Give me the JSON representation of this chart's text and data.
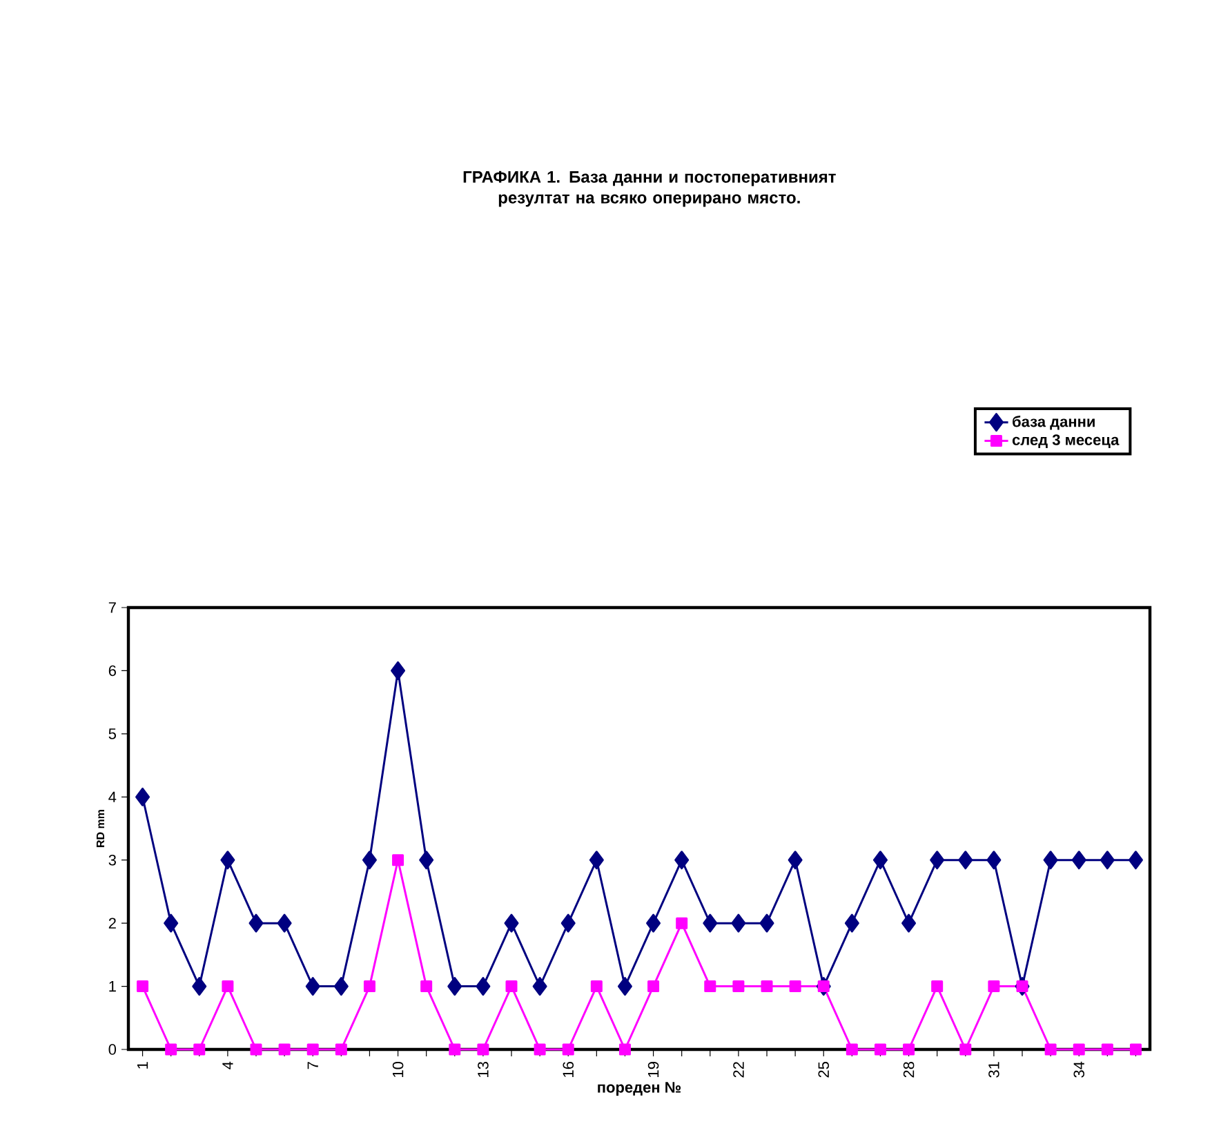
{
  "chart_data": {
    "type": "line",
    "title": "ГРАФИКА 1.  База данни и постоперативният резултат на всяко оперирано място.",
    "xlabel": "пореден №",
    "ylabel": "RD mm",
    "categories": [
      "1",
      null,
      null,
      "4",
      null,
      null,
      "7",
      null,
      null,
      "10",
      null,
      null,
      "13",
      null,
      null,
      "16",
      null,
      null,
      "19",
      null,
      null,
      "22",
      null,
      null,
      "25",
      null,
      null,
      "28",
      null,
      null,
      "31",
      null,
      null,
      "34",
      null,
      null
    ],
    "series": [
      {
        "name": "база данни",
        "color": "#000080",
        "marker": "diamond",
        "values": [
          4,
          2,
          1,
          3,
          2,
          2,
          1,
          1,
          3,
          6,
          3,
          1,
          1,
          2,
          1,
          2,
          3,
          1,
          2,
          3,
          2,
          2,
          2,
          3,
          1,
          2,
          3,
          2,
          3,
          3,
          3,
          1,
          3,
          3,
          3,
          3
        ]
      },
      {
        "name": "след 3 месеца",
        "color": "#ff00ff",
        "marker": "square",
        "values": [
          1,
          0,
          0,
          1,
          0,
          0,
          0,
          0,
          1,
          3,
          1,
          0,
          0,
          1,
          0,
          0,
          1,
          0,
          1,
          2,
          1,
          1,
          1,
          1,
          1,
          0,
          0,
          0,
          1,
          0,
          1,
          1,
          0,
          0,
          0,
          0
        ]
      }
    ],
    "ylim": [
      0,
      7
    ],
    "yticks": [
      0,
      1,
      2,
      3,
      4,
      5,
      6,
      7
    ],
    "legend": "top right",
    "grid": false
  }
}
